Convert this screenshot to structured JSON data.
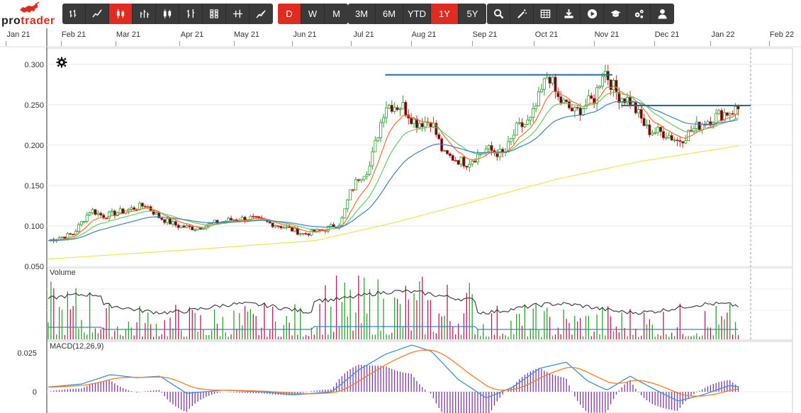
{
  "brand": {
    "logo_part1": "pro",
    "logo_part2": "trader"
  },
  "toolbar": {
    "chart_type_buttons": [
      {
        "name": "ohlc-bars-icon"
      },
      {
        "name": "line-chart-icon"
      },
      {
        "name": "candlestick-icon",
        "active": true
      },
      {
        "name": "hlc-bars-icon"
      },
      {
        "name": "hollow-candles-icon"
      },
      {
        "name": "heikin-ashi-icon"
      },
      {
        "name": "renko-icon"
      },
      {
        "name": "point-figure-icon"
      },
      {
        "name": "area-chart-icon"
      }
    ],
    "interval_buttons": [
      {
        "label": "D",
        "active": true
      },
      {
        "label": "W",
        "active": false
      },
      {
        "label": "M",
        "active": false
      }
    ],
    "range_buttons": [
      {
        "label": "3M",
        "active": false
      },
      {
        "label": "6M",
        "active": false
      },
      {
        "label": "YTD",
        "active": false
      },
      {
        "label": "1Y",
        "active": true
      },
      {
        "label": "5Y",
        "active": false
      }
    ],
    "tool_buttons": [
      {
        "name": "search-icon"
      },
      {
        "name": "magic-wand-icon"
      },
      {
        "name": "table-icon"
      },
      {
        "name": "download-icon"
      },
      {
        "name": "play-icon"
      },
      {
        "name": "graduation-cap-icon"
      },
      {
        "name": "settings-cogs-icon"
      },
      {
        "name": "user-icon"
      }
    ]
  },
  "colors": {
    "up": "#2ca02c",
    "down": "#d62728",
    "candle_up_body": "#ffffff",
    "candle_down_body": "#222222",
    "ema_short": "#ff6a2a",
    "ema_mid": "#66cc66",
    "sma_mid": "#3b82c4",
    "sma_long": "#f2e34c",
    "trendline": "#1f6aa5",
    "macd": "#3b8fd8",
    "signal": "#ff7a1a",
    "hist": "#7b3aa0",
    "volume_avg": "#3b82c4",
    "volume_line": "#333333",
    "accent": "#e02b20"
  },
  "chart_data": [
    {
      "type": "candlestick",
      "panel": "price",
      "x_ticks": [
        "Jan 21",
        "Feb 21",
        "Mar 21",
        "Apr 21",
        "May 21",
        "Jun 21",
        "Jul 21",
        "Aug 21",
        "Sep 21",
        "Oct 21",
        "Nov 21",
        "Dec 21",
        "Jan 22",
        "Feb 22"
      ],
      "y_ticks": [
        "0.300",
        "0.250",
        "0.200",
        "0.150",
        "0.100",
        "0.050"
      ],
      "ylim": [
        0.05,
        0.32
      ],
      "grid": true,
      "close_path": [
        [
          "2021-01-01",
          0.082
        ],
        [
          "2021-01-15",
          0.09
        ],
        [
          "2021-01-25",
          0.12
        ],
        [
          "2021-02-01",
          0.112
        ],
        [
          "2021-02-15",
          0.12
        ],
        [
          "2021-02-25",
          0.126
        ],
        [
          "2021-03-05",
          0.11
        ],
        [
          "2021-03-15",
          0.1
        ],
        [
          "2021-03-25",
          0.097
        ],
        [
          "2021-04-05",
          0.104
        ],
        [
          "2021-04-15",
          0.108
        ],
        [
          "2021-04-25",
          0.11
        ],
        [
          "2021-05-05",
          0.104
        ],
        [
          "2021-05-15",
          0.098
        ],
        [
          "2021-05-25",
          0.09
        ],
        [
          "2021-06-05",
          0.095
        ],
        [
          "2021-06-15",
          0.104
        ],
        [
          "2021-06-20",
          0.14
        ],
        [
          "2021-06-25",
          0.16
        ],
        [
          "2021-07-01",
          0.172
        ],
        [
          "2021-07-10",
          0.25
        ],
        [
          "2021-07-20",
          0.248
        ],
        [
          "2021-07-27",
          0.228
        ],
        [
          "2021-08-05",
          0.23
        ],
        [
          "2021-08-12",
          0.188
        ],
        [
          "2021-08-25",
          0.178
        ],
        [
          "2021-09-05",
          0.195
        ],
        [
          "2021-09-15",
          0.188
        ],
        [
          "2021-09-22",
          0.22
        ],
        [
          "2021-09-30",
          0.23
        ],
        [
          "2021-10-05",
          0.26
        ],
        [
          "2021-10-10",
          0.29
        ],
        [
          "2021-10-15",
          0.258
        ],
        [
          "2021-10-25",
          0.24
        ],
        [
          "2021-11-05",
          0.258
        ],
        [
          "2021-11-10",
          0.295
        ],
        [
          "2021-11-18",
          0.262
        ],
        [
          "2021-11-25",
          0.255
        ],
        [
          "2021-12-05",
          0.218
        ],
        [
          "2021-12-15",
          0.215
        ],
        [
          "2021-12-22",
          0.205
        ],
        [
          "2022-01-05",
          0.228
        ],
        [
          "2022-01-15",
          0.238
        ],
        [
          "2022-01-25",
          0.245
        ]
      ],
      "overlays": [
        {
          "kind": "ema_short",
          "smoothing": 3
        },
        {
          "kind": "ema_mid",
          "smoothing": 6
        },
        {
          "kind": "sma_mid",
          "smoothing": 12
        },
        {
          "kind": "sma_long",
          "points": [
            [
              "2021-01-01",
              0.059
            ],
            [
              "2021-04-01",
              0.072
            ],
            [
              "2021-06-01",
              0.082
            ],
            [
              "2021-07-15",
              0.104
            ],
            [
              "2021-09-01",
              0.132
            ],
            [
              "2021-10-15",
              0.158
            ],
            [
              "2021-12-01",
              0.18
            ],
            [
              "2022-01-25",
              0.199
            ]
          ]
        }
      ],
      "trendlines": [
        {
          "from": [
            "2021-07-10",
            0.287
          ],
          "to": [
            "2021-11-15",
            0.287
          ]
        },
        {
          "from": [
            "2021-11-20",
            0.249
          ],
          "to": [
            "2022-02-01",
            0.249
          ]
        }
      ]
    },
    {
      "type": "bar",
      "panel": "volume",
      "title": "Volume",
      "series": [
        {
          "name": "Volume"
        }
      ]
    },
    {
      "type": "line",
      "panel": "macd",
      "title": "MACD(12,26,9)",
      "y_ticks": [
        "0.025",
        "0"
      ],
      "ylim": [
        -0.006,
        0.03
      ],
      "macd_path": [
        [
          "2021-01-01",
          0.003
        ],
        [
          "2021-01-20",
          0.005
        ],
        [
          "2021-02-05",
          0.011
        ],
        [
          "2021-02-20",
          0.009
        ],
        [
          "2021-03-05",
          0.01
        ],
        [
          "2021-03-20",
          -0.001
        ],
        [
          "2021-04-10",
          0.001
        ],
        [
          "2021-05-01",
          0.0
        ],
        [
          "2021-05-20",
          -0.002
        ],
        [
          "2021-06-10",
          0.0
        ],
        [
          "2021-06-25",
          0.014
        ],
        [
          "2021-07-10",
          0.024
        ],
        [
          "2021-07-25",
          0.03
        ],
        [
          "2021-08-05",
          0.026
        ],
        [
          "2021-08-20",
          0.008
        ],
        [
          "2021-09-05",
          -0.004
        ],
        [
          "2021-09-20",
          0.003
        ],
        [
          "2021-10-05",
          0.015
        ],
        [
          "2021-10-20",
          0.019
        ],
        [
          "2021-11-01",
          0.007
        ],
        [
          "2021-11-12",
          0.001
        ],
        [
          "2021-11-25",
          0.01
        ],
        [
          "2021-12-08",
          0.002
        ],
        [
          "2021-12-22",
          -0.006
        ],
        [
          "2022-01-05",
          -0.002
        ],
        [
          "2022-01-20",
          0.004
        ],
        [
          "2022-01-27",
          0.003
        ]
      ]
    }
  ]
}
